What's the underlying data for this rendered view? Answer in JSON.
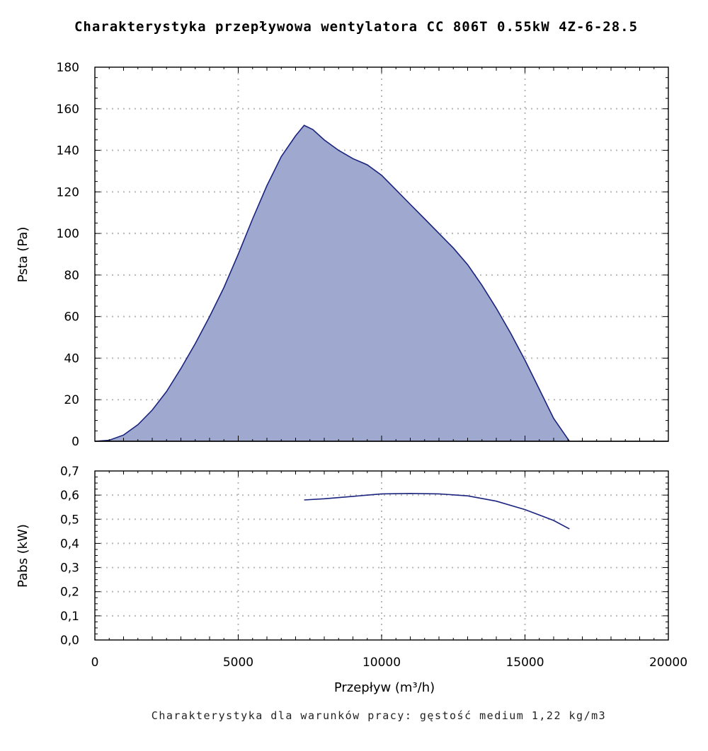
{
  "chart_data": [
    {
      "type": "area",
      "title": "Charakterystyka przepływowa wentylatora CC 806T 0.55kW 4Z-6-28.5",
      "ylabel": "Psta (Pa)",
      "xlim": [
        0,
        20000
      ],
      "ylim": [
        0,
        180
      ],
      "x_ticks": [
        "0",
        "5000",
        "10000",
        "15000",
        "20000"
      ],
      "y_ticks": [
        "0",
        "20",
        "40",
        "60",
        "80",
        "100",
        "120",
        "140",
        "160",
        "180"
      ],
      "grid": true,
      "colors": {
        "fill": "#9fa9cf",
        "line": "#1a237e"
      },
      "series": [
        {
          "x": [
            0,
            500,
            1000,
            1500,
            2000,
            2500,
            3000,
            3500,
            4000,
            4500,
            5000,
            5500,
            6000,
            6500,
            7000,
            7300,
            7600,
            8000,
            8500,
            9000,
            9500,
            10000,
            10500,
            11000,
            11500,
            12000,
            12500,
            13000,
            13500,
            14000,
            14500,
            15000,
            15500,
            16000,
            16500,
            16550
          ],
          "y": [
            0,
            0.5,
            3,
            8,
            15,
            24,
            35,
            47,
            60,
            74,
            90,
            107,
            123,
            137,
            147,
            152,
            150,
            145,
            140,
            136,
            133,
            128,
            121,
            114,
            107,
            100,
            93,
            85,
            75,
            64,
            52,
            39,
            25,
            11,
            1,
            0
          ]
        }
      ]
    },
    {
      "type": "line",
      "ylabel": "Pabs (kW)",
      "xlabel": "Przepływ (m³/h)",
      "xlim": [
        0,
        20000
      ],
      "ylim": [
        0,
        0.7
      ],
      "x_ticks": [
        "0",
        "5000",
        "10000",
        "15000",
        "20000"
      ],
      "y_ticks": [
        "0,0",
        "0,1",
        "0,2",
        "0,3",
        "0,4",
        "0,5",
        "0,6",
        "0,7"
      ],
      "grid": true,
      "colors": {
        "line": "#1a237e"
      },
      "series": [
        {
          "x": [
            7300,
            8000,
            9000,
            10000,
            11000,
            12000,
            13000,
            14000,
            15000,
            16000,
            16550
          ],
          "y": [
            0.58,
            0.585,
            0.595,
            0.605,
            0.607,
            0.605,
            0.597,
            0.575,
            0.54,
            0.495,
            0.46
          ]
        }
      ]
    }
  ],
  "footnote": "Charakterystyka dla warunków pracy: gęstość medium 1,22 kg/m3"
}
